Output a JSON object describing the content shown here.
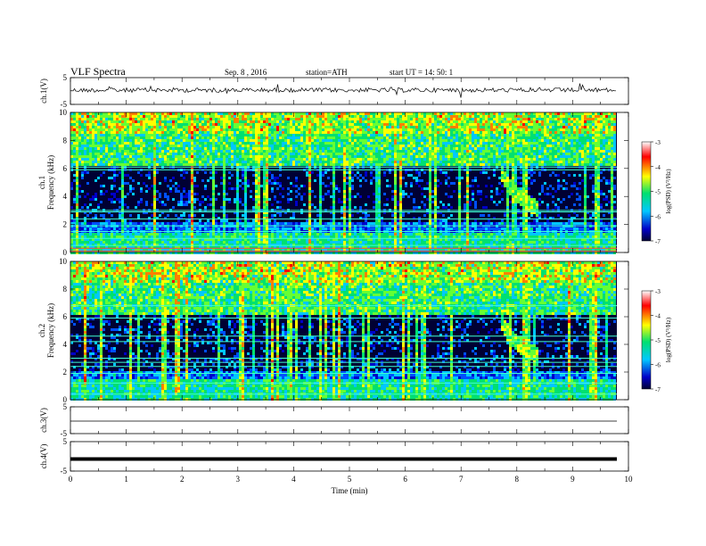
{
  "header": {
    "title": "VLF Spectra",
    "date": "Sep. 8 , 2016",
    "station": "station=ATH",
    "start": "start  UT =   14: 50: 1"
  },
  "chart_data": {
    "type": "heatmap",
    "xlabel": "Time (min)",
    "xlim": [
      0,
      10
    ],
    "x_ticks": [
      "0",
      "1",
      "2",
      "3",
      "4",
      "5",
      "6",
      "7",
      "8",
      "9",
      "10"
    ],
    "colors": {
      "low": "#000033",
      "mid1": "#0000c8",
      "mid2": "#00c8ff",
      "mid3": "#00e070",
      "mid4": "#ffff00",
      "high": "#ff0000",
      "top": "#ffffff"
    },
    "panels": [
      {
        "id": "ch1v",
        "type": "line",
        "ylabel": "ch.1(V)",
        "ylim": [
          -5,
          5
        ],
        "y_ticks": [
          "5",
          "-5"
        ],
        "trace": "noisy"
      },
      {
        "id": "ch1",
        "type": "heatmap",
        "ylabel_top": "ch.1",
        "ylabel": "Frequency  (kHz)",
        "ylim": [
          0,
          10
        ],
        "y_ticks": [
          "0",
          "2",
          "4",
          "6",
          "8",
          "10"
        ],
        "colorbar": {
          "label": "log(PSD) (V²/Hz)",
          "ticks": [
            "-3",
            "-4",
            "-5",
            "-6",
            "-7"
          ],
          "range": [
            -7,
            -3
          ]
        },
        "hiss_band_khz": [
          0,
          1.5
        ],
        "constant_lines_khz": [
          0.1,
          0.3,
          0.5,
          1.0,
          1.5,
          1.9,
          2.4,
          2.9,
          3.0,
          5.9,
          6.1
        ],
        "emission_event": {
          "start_min": 7.7,
          "end_min": 8.35,
          "freq_start_khz": 6.2,
          "freq_end_khz": 3.2
        }
      },
      {
        "id": "ch2",
        "type": "heatmap",
        "ylabel_top": "ch.2",
        "ylabel": "Frequency  (kHz)",
        "ylim": [
          0,
          10
        ],
        "y_ticks": [
          "0",
          "2",
          "4",
          "6",
          "8",
          "10"
        ],
        "colorbar": {
          "label": "log(PSD) (V²/Hz)",
          "ticks": [
            "-3",
            "-4",
            "-5",
            "-6",
            "-7"
          ],
          "range": [
            -7,
            -3
          ]
        },
        "hiss_band_khz": [
          0,
          1.5
        ],
        "constant_lines_khz": [
          0.4,
          1.2,
          1.9,
          2.4,
          2.7,
          3.0,
          4.2,
          4.6,
          5.9,
          6.8
        ],
        "emission_event": {
          "start_min": 7.7,
          "end_min": 8.35,
          "freq_start_khz": 6.2,
          "freq_end_khz": 3.2
        }
      },
      {
        "id": "ch3v",
        "type": "line",
        "ylabel": "ch.3(V)",
        "ylim": [
          -5,
          5
        ],
        "y_ticks": [
          "5",
          "-5"
        ],
        "trace": "flat"
      },
      {
        "id": "ch4v",
        "type": "line",
        "ylabel": "ch.4(V)",
        "ylim": [
          -5,
          5
        ],
        "y_ticks": [
          "5",
          "-5"
        ],
        "trace": "thick"
      }
    ]
  }
}
